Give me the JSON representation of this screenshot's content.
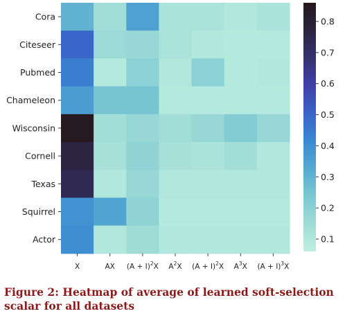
{
  "caption": "Figure 2: Heatmap of average of learned soft-selection scalar for all datasets",
  "chart_data": {
    "type": "heatmap",
    "rows": [
      "Cora",
      "Citeseer",
      "Pubmed",
      "Chameleon",
      "Wisconsin",
      "Cornell",
      "Texas",
      "Squirrel",
      "Actor"
    ],
    "columns": [
      {
        "base": "X",
        "sup": ""
      },
      {
        "base": "AX",
        "sup": ""
      },
      {
        "base": "(A + I)",
        "sup": "2",
        "tail": "X"
      },
      {
        "base": "A",
        "sup": "2",
        "tail": "X"
      },
      {
        "base": "(A + I)",
        "sup": "2",
        "tail": "X"
      },
      {
        "base": "A",
        "sup": "3",
        "tail": "X"
      },
      {
        "base": "(A + I)",
        "sup": "3",
        "tail": "X"
      }
    ],
    "values": [
      [
        0.3,
        0.14,
        0.35,
        0.12,
        0.12,
        0.1,
        0.12
      ],
      [
        0.5,
        0.16,
        0.17,
        0.12,
        0.1,
        0.09,
        0.09
      ],
      [
        0.44,
        0.09,
        0.2,
        0.1,
        0.2,
        0.09,
        0.1
      ],
      [
        0.36,
        0.25,
        0.25,
        0.09,
        0.09,
        0.09,
        0.09
      ],
      [
        0.85,
        0.14,
        0.17,
        0.14,
        0.17,
        0.22,
        0.17
      ],
      [
        0.77,
        0.13,
        0.19,
        0.13,
        0.12,
        0.14,
        0.1
      ],
      [
        0.74,
        0.1,
        0.17,
        0.1,
        0.1,
        0.1,
        0.1
      ],
      [
        0.39,
        0.34,
        0.19,
        0.09,
        0.09,
        0.09,
        0.09
      ],
      [
        0.4,
        0.1,
        0.15,
        0.1,
        0.1,
        0.1,
        0.1
      ]
    ],
    "colorbar": {
      "min": 0.06,
      "max": 0.86,
      "ticks": [
        0.1,
        0.2,
        0.3,
        0.4,
        0.5,
        0.6,
        0.7,
        0.8
      ],
      "tick_labels": [
        "0.1",
        "0.2",
        "0.3",
        "0.4",
        "0.5",
        "0.6",
        "0.7",
        "0.8"
      ]
    },
    "colormap_stops": [
      "#bff0e0",
      "#9fdcd6",
      "#7cc8d4",
      "#55aad0",
      "#3a88d2",
      "#3a63c8",
      "#4040a8",
      "#363270",
      "#2c2440",
      "#26181c"
    ]
  }
}
